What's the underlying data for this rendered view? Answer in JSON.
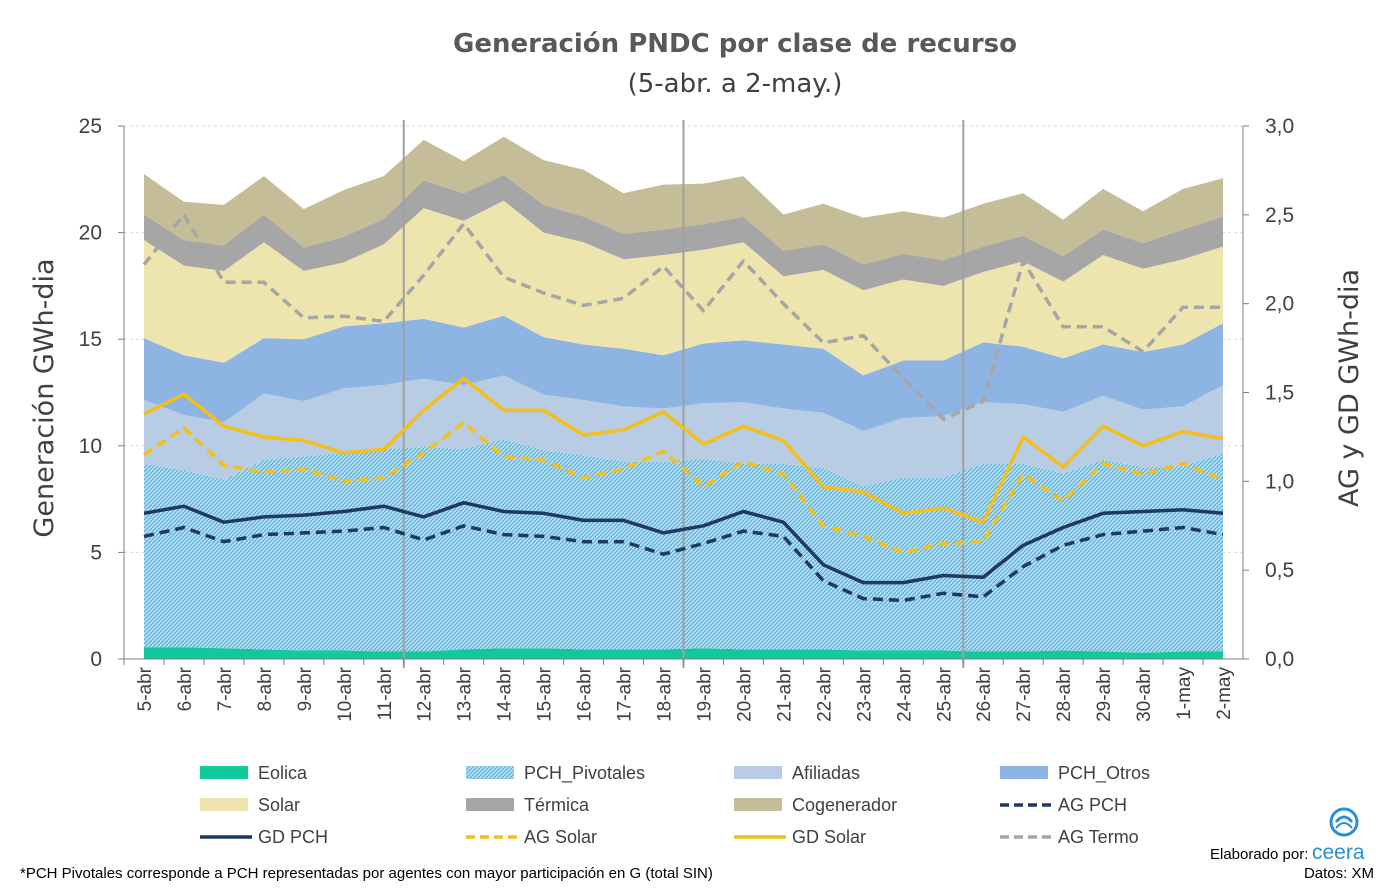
{
  "chart_data": {
    "type": "area",
    "title": "Generación PNDC por clase de recurso",
    "subtitle": "(5-abr. a 2-may.)",
    "ylabel": "Generación GWh-dia",
    "y2label": "AG y GD  GWh-dia",
    "ylim": [
      0,
      25
    ],
    "y2lim": [
      0,
      3
    ],
    "yticks": [
      "0",
      "5",
      "10",
      "15",
      "20",
      "25"
    ],
    "y2ticks": [
      "0,0",
      "0,5",
      "1,0",
      "1,5",
      "2,0",
      "2,5",
      "3,0"
    ],
    "categories": [
      "5-abr",
      "6-abr",
      "7-abr",
      "8-abr",
      "9-abr",
      "10-abr",
      "11-abr",
      "12-abr",
      "13-abr",
      "14-abr",
      "15-abr",
      "16-abr",
      "17-abr",
      "18-abr",
      "19-abr",
      "20-abr",
      "21-abr",
      "22-abr",
      "23-abr",
      "24-abr",
      "25-abr",
      "26-abr",
      "27-abr",
      "28-abr",
      "29-abr",
      "30-abr",
      "1-may",
      "2-may"
    ],
    "stacked_series": [
      {
        "name": "Eolica",
        "color": "#12c99b",
        "values": [
          0.55,
          0.55,
          0.5,
          0.45,
          0.4,
          0.4,
          0.35,
          0.35,
          0.45,
          0.5,
          0.5,
          0.45,
          0.45,
          0.45,
          0.5,
          0.45,
          0.45,
          0.45,
          0.4,
          0.4,
          0.4,
          0.35,
          0.35,
          0.4,
          0.35,
          0.3,
          0.35,
          0.35
        ]
      },
      {
        "name": "PCH_Pivotales",
        "color": "#7ec7ea",
        "values": [
          8.6,
          8.3,
          7.9,
          8.9,
          9.1,
          9.3,
          9.5,
          9.6,
          9.4,
          9.8,
          9.3,
          9.1,
          8.8,
          8.8,
          8.9,
          8.7,
          8.7,
          8.5,
          7.7,
          8.1,
          8.1,
          8.8,
          8.8,
          8.3,
          9.0,
          8.7,
          8.7,
          9.3
        ]
      },
      {
        "name": "Afiliadas",
        "color": "#b8cce4",
        "values": [
          3.0,
          2.6,
          2.7,
          3.1,
          2.6,
          3.0,
          3.0,
          3.2,
          3.0,
          3.0,
          2.6,
          2.6,
          2.6,
          2.5,
          2.6,
          2.9,
          2.6,
          2.6,
          2.6,
          2.8,
          2.9,
          2.9,
          2.8,
          2.9,
          3.0,
          2.7,
          2.8,
          3.2
        ]
      },
      {
        "name": "PCH_Otros",
        "color": "#8eb4e3",
        "values": [
          2.9,
          2.8,
          2.8,
          2.6,
          2.9,
          2.9,
          2.9,
          2.8,
          2.7,
          2.8,
          2.7,
          2.6,
          2.7,
          2.5,
          2.8,
          2.9,
          3.0,
          3.0,
          2.6,
          2.7,
          2.6,
          2.8,
          2.7,
          2.5,
          2.4,
          2.7,
          2.9,
          2.9
        ]
      },
      {
        "name": "Solar",
        "color": "#eee5ae",
        "values": [
          4.6,
          4.2,
          4.3,
          4.5,
          3.2,
          3.0,
          3.7,
          5.2,
          5.0,
          5.4,
          4.9,
          4.8,
          4.2,
          4.7,
          4.4,
          4.6,
          3.2,
          3.7,
          4.0,
          3.8,
          3.5,
          3.3,
          4.0,
          3.6,
          4.2,
          3.9,
          4.0,
          3.6
        ]
      },
      {
        "name": "Térmica",
        "color": "#a6a6a6",
        "values": [
          1.2,
          1.2,
          1.2,
          1.3,
          1.1,
          1.2,
          1.2,
          1.3,
          1.3,
          1.2,
          1.3,
          1.2,
          1.2,
          1.2,
          1.2,
          1.2,
          1.2,
          1.2,
          1.2,
          1.2,
          1.2,
          1.2,
          1.2,
          1.2,
          1.2,
          1.2,
          1.4,
          1.4
        ]
      },
      {
        "name": "Cogenerador",
        "color": "#c4bd97",
        "values": [
          1.9,
          1.8,
          1.9,
          1.8,
          1.8,
          2.2,
          2.0,
          1.9,
          1.5,
          1.8,
          2.1,
          2.2,
          1.9,
          2.1,
          1.9,
          1.9,
          1.7,
          1.9,
          2.2,
          2.0,
          2.0,
          2.0,
          2.0,
          1.7,
          1.9,
          1.5,
          1.9,
          1.8
        ]
      }
    ],
    "line_series": [
      {
        "name": "AG PCH",
        "color": "#1f3864",
        "dash": true,
        "values": [
          0.69,
          0.74,
          0.66,
          0.7,
          0.71,
          0.72,
          0.74,
          0.67,
          0.75,
          0.7,
          0.69,
          0.66,
          0.66,
          0.59,
          0.65,
          0.72,
          0.69,
          0.44,
          0.34,
          0.33,
          0.37,
          0.35,
          0.52,
          0.64,
          0.7,
          0.72,
          0.74,
          0.7
        ]
      },
      {
        "name": "GD PCH",
        "color": "#1f3864",
        "dash": false,
        "values": [
          0.82,
          0.86,
          0.77,
          0.8,
          0.81,
          0.83,
          0.86,
          0.8,
          0.88,
          0.83,
          0.82,
          0.78,
          0.78,
          0.71,
          0.75,
          0.83,
          0.77,
          0.53,
          0.43,
          0.43,
          0.47,
          0.46,
          0.64,
          0.74,
          0.82,
          0.83,
          0.84,
          0.82
        ]
      },
      {
        "name": "AG Solar",
        "color": "#f5bf19",
        "dash": true,
        "values": [
          1.15,
          1.3,
          1.09,
          1.05,
          1.07,
          1.0,
          1.02,
          1.16,
          1.33,
          1.14,
          1.12,
          1.02,
          1.07,
          1.17,
          0.97,
          1.11,
          1.04,
          0.75,
          0.69,
          0.6,
          0.65,
          0.66,
          1.04,
          0.89,
          1.1,
          1.04,
          1.1,
          1.01
        ]
      },
      {
        "name": "GD Solar",
        "color": "#f5bf19",
        "dash": false,
        "values": [
          1.38,
          1.49,
          1.31,
          1.25,
          1.23,
          1.16,
          1.18,
          1.4,
          1.58,
          1.4,
          1.4,
          1.26,
          1.29,
          1.39,
          1.21,
          1.31,
          1.23,
          0.97,
          0.94,
          0.82,
          0.85,
          0.77,
          1.25,
          1.08,
          1.31,
          1.2,
          1.28,
          1.24
        ]
      },
      {
        "name": "AG Termo",
        "color": "#a6a6a6",
        "dash": true,
        "values": [
          2.22,
          2.5,
          2.12,
          2.12,
          1.92,
          1.93,
          1.9,
          2.16,
          2.45,
          2.15,
          2.06,
          1.99,
          2.03,
          2.21,
          1.96,
          2.24,
          2.0,
          1.78,
          1.82,
          1.58,
          1.35,
          1.45,
          2.24,
          1.87,
          1.87,
          1.73,
          1.98,
          1.98
        ]
      }
    ],
    "legend": [
      "Eolica",
      "PCH_Pivotales",
      "Afiliadas",
      "PCH_Otros",
      "Solar",
      "Térmica",
      "Cogenerador",
      "AG PCH",
      "GD PCH",
      "AG Solar",
      "GD Solar",
      "AG Termo"
    ],
    "legend_position": "bottom",
    "grid": true
  },
  "footnote": "*PCH Pivotales corresponde a PCH representadas por agentes con mayor participación en G (total SIN)",
  "credit": {
    "label": "Elaborado por:",
    "brand": "ceera",
    "source": "Datos: XM"
  },
  "colors": {
    "brand": "#2b8fd6"
  }
}
